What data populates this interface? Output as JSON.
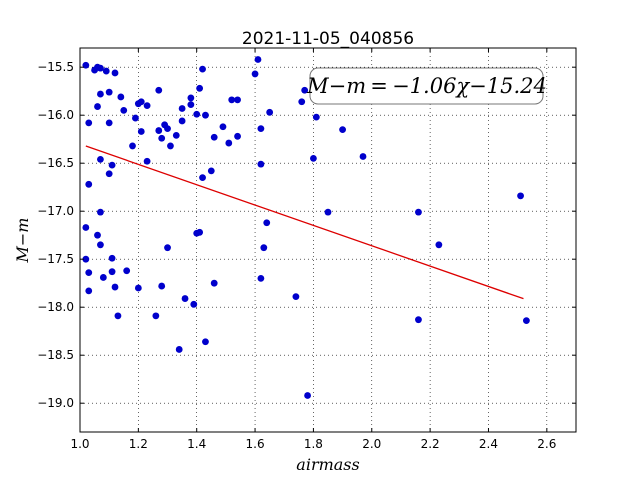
{
  "chart_data": {
    "type": "scatter",
    "title": "2021-11-05_040856",
    "xlabel": "airmass",
    "ylabel": "M−m",
    "xlim": [
      1.0,
      2.7
    ],
    "ylim": [
      -19.3,
      -15.3
    ],
    "y_inverted": true,
    "grid": true,
    "x_ticks": [
      1.0,
      1.2,
      1.4,
      1.6,
      1.8,
      2.0,
      2.2,
      2.4,
      2.6
    ],
    "x_tick_labels": [
      "1.0",
      "1.2",
      "1.4",
      "1.6",
      "1.8",
      "2.0",
      "2.2",
      "2.4",
      "2.6"
    ],
    "y_ticks": [
      -15.5,
      -16.0,
      -16.5,
      -17.0,
      -17.5,
      -18.0,
      -18.5,
      -19.0
    ],
    "y_tick_labels": [
      "−15.5",
      "−16.0",
      "−16.5",
      "−17.0",
      "−17.5",
      "−18.0",
      "−18.5",
      "−19.0"
    ],
    "annotation": "M−m = −1.06χ−15.24",
    "marker_color": "#0000cc",
    "fit_color": "#dd0000",
    "fit": {
      "slope": -1.06,
      "intercept": -15.24,
      "x_range": [
        1.02,
        2.52
      ]
    },
    "points": [
      {
        "x": 1.02,
        "y": -15.48
      },
      {
        "x": 1.03,
        "y": -16.08
      },
      {
        "x": 1.03,
        "y": -16.72
      },
      {
        "x": 1.02,
        "y": -17.17
      },
      {
        "x": 1.02,
        "y": -17.5
      },
      {
        "x": 1.03,
        "y": -17.64
      },
      {
        "x": 1.03,
        "y": -17.83
      },
      {
        "x": 1.05,
        "y": -15.53
      },
      {
        "x": 1.06,
        "y": -15.5
      },
      {
        "x": 1.07,
        "y": -15.51
      },
      {
        "x": 1.07,
        "y": -15.78
      },
      {
        "x": 1.06,
        "y": -15.91
      },
      {
        "x": 1.09,
        "y": -15.54
      },
      {
        "x": 1.1,
        "y": -15.76
      },
      {
        "x": 1.12,
        "y": -15.56
      },
      {
        "x": 1.07,
        "y": -16.46
      },
      {
        "x": 1.1,
        "y": -16.08
      },
      {
        "x": 1.11,
        "y": -16.52
      },
      {
        "x": 1.1,
        "y": -16.61
      },
      {
        "x": 1.07,
        "y": -17.01
      },
      {
        "x": 1.06,
        "y": -17.25
      },
      {
        "x": 1.07,
        "y": -17.35
      },
      {
        "x": 1.08,
        "y": -17.69
      },
      {
        "x": 1.11,
        "y": -17.49
      },
      {
        "x": 1.11,
        "y": -17.63
      },
      {
        "x": 1.12,
        "y": -17.79
      },
      {
        "x": 1.13,
        "y": -18.09
      },
      {
        "x": 1.14,
        "y": -15.81
      },
      {
        "x": 1.15,
        "y": -15.95
      },
      {
        "x": 1.16,
        "y": -17.62
      },
      {
        "x": 1.18,
        "y": -16.32
      },
      {
        "x": 1.19,
        "y": -16.03
      },
      {
        "x": 1.2,
        "y": -15.88
      },
      {
        "x": 1.21,
        "y": -15.86
      },
      {
        "x": 1.21,
        "y": -16.17
      },
      {
        "x": 1.23,
        "y": -15.9
      },
      {
        "x": 1.23,
        "y": -16.48
      },
      {
        "x": 1.2,
        "y": -17.8
      },
      {
        "x": 1.26,
        "y": -18.09
      },
      {
        "x": 1.27,
        "y": -15.74
      },
      {
        "x": 1.27,
        "y": -16.16
      },
      {
        "x": 1.28,
        "y": -16.24
      },
      {
        "x": 1.29,
        "y": -16.1
      },
      {
        "x": 1.3,
        "y": -16.14
      },
      {
        "x": 1.31,
        "y": -16.32
      },
      {
        "x": 1.28,
        "y": -17.78
      },
      {
        "x": 1.3,
        "y": -17.38
      },
      {
        "x": 1.33,
        "y": -16.21
      },
      {
        "x": 1.35,
        "y": -15.93
      },
      {
        "x": 1.35,
        "y": -16.06
      },
      {
        "x": 1.34,
        "y": -18.44
      },
      {
        "x": 1.36,
        "y": -17.91
      },
      {
        "x": 1.38,
        "y": -15.82
      },
      {
        "x": 1.38,
        "y": -15.89
      },
      {
        "x": 1.39,
        "y": -17.97
      },
      {
        "x": 1.4,
        "y": -15.99
      },
      {
        "x": 1.4,
        "y": -17.23
      },
      {
        "x": 1.41,
        "y": -17.22
      },
      {
        "x": 1.41,
        "y": -15.72
      },
      {
        "x": 1.42,
        "y": -15.52
      },
      {
        "x": 1.43,
        "y": -16.0
      },
      {
        "x": 1.42,
        "y": -16.65
      },
      {
        "x": 1.43,
        "y": -18.36
      },
      {
        "x": 1.45,
        "y": -16.58
      },
      {
        "x": 1.46,
        "y": -16.23
      },
      {
        "x": 1.46,
        "y": -17.75
      },
      {
        "x": 1.49,
        "y": -16.12
      },
      {
        "x": 1.51,
        "y": -16.29
      },
      {
        "x": 1.52,
        "y": -15.84
      },
      {
        "x": 1.54,
        "y": -15.84
      },
      {
        "x": 1.54,
        "y": -16.22
      },
      {
        "x": 1.6,
        "y": -15.57
      },
      {
        "x": 1.61,
        "y": -15.42
      },
      {
        "x": 1.62,
        "y": -16.14
      },
      {
        "x": 1.62,
        "y": -16.51
      },
      {
        "x": 1.63,
        "y": -17.38
      },
      {
        "x": 1.62,
        "y": -17.7
      },
      {
        "x": 1.64,
        "y": -17.12
      },
      {
        "x": 1.65,
        "y": -15.97
      },
      {
        "x": 1.74,
        "y": -17.89
      },
      {
        "x": 1.76,
        "y": -15.86
      },
      {
        "x": 1.77,
        "y": -15.74
      },
      {
        "x": 1.78,
        "y": -18.92
      },
      {
        "x": 1.8,
        "y": -16.45
      },
      {
        "x": 1.81,
        "y": -16.02
      },
      {
        "x": 1.85,
        "y": -17.01
      },
      {
        "x": 1.9,
        "y": -16.15
      },
      {
        "x": 1.97,
        "y": -16.43
      },
      {
        "x": 2.16,
        "y": -17.01
      },
      {
        "x": 2.16,
        "y": -18.13
      },
      {
        "x": 2.23,
        "y": -17.35
      },
      {
        "x": 2.51,
        "y": -16.84
      },
      {
        "x": 2.53,
        "y": -18.14
      }
    ]
  }
}
